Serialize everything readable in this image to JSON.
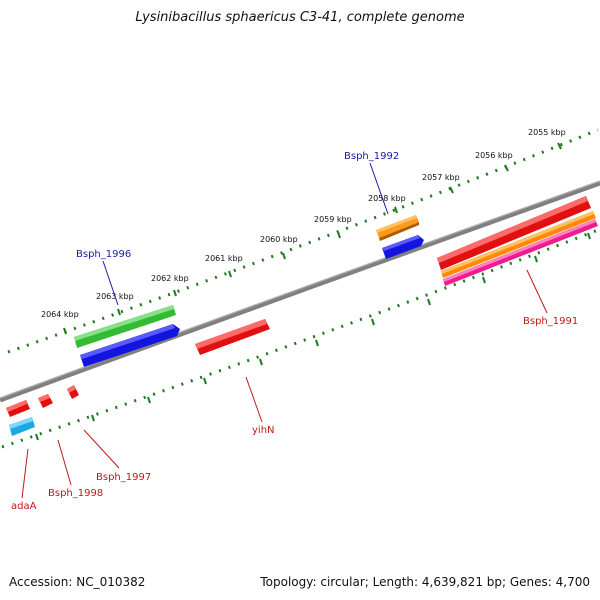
{
  "title": "Lysinibacillus sphaericus C3-41, complete genome",
  "accession": "Accession: NC_010382",
  "topology": "Topology: circular; Length: 4,639,821 bp; Genes: 4,700",
  "ticks": [
    "2055 kbp",
    "2056 kbp",
    "2057 kbp",
    "2058 kbp",
    "2059 kbp",
    "2060 kbp",
    "2061 kbp",
    "2062 kbp",
    "2063 kbp",
    "2064 kbp"
  ],
  "genes": {
    "bsph_1992": "Bsph_1992",
    "bsph_1996": "Bsph_1996",
    "bsph_1991": "Bsph_1991",
    "yihN": "yihN",
    "bsph_1997": "Bsph_1997",
    "bsph_1998": "Bsph_1998",
    "adaA": "adaA"
  },
  "colors": {
    "backbone": "#808080",
    "tick": "#1e7a1e",
    "red": "#e01010",
    "green": "#33bb33",
    "blue": "#1414e0",
    "orange": "#ff8c00",
    "magenta": "#ee1c8c",
    "cyan": "#1ca8e0"
  }
}
